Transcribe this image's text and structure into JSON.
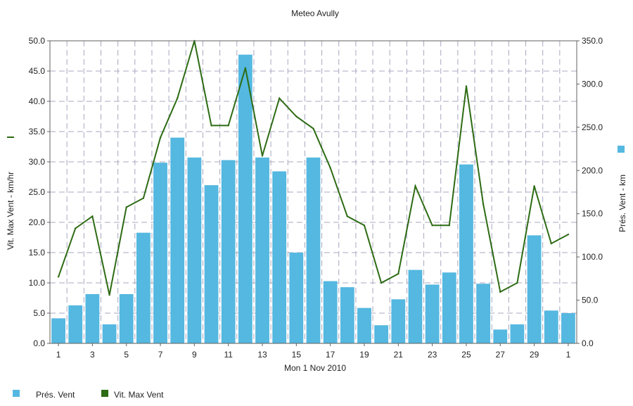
{
  "chart_data": {
    "type": "bar",
    "title": "Meteo  Avully",
    "xlabel": "Mon 1 Nov 2010",
    "y1label": "Vit. Max Vent - km/hr",
    "y2label": "Prés. Vent - km",
    "y1lim": [
      0,
      50
    ],
    "y1ticks": [
      "0.0",
      "5.0",
      "10.0",
      "15.0",
      "20.0",
      "25.0",
      "30.0",
      "35.0",
      "40.0",
      "45.0",
      "50.0"
    ],
    "y2lim": [
      0,
      350
    ],
    "y2ticks": [
      "0.0",
      "50.0",
      "100.0",
      "150.0",
      "200.0",
      "250.0",
      "300.0",
      "350.0"
    ],
    "xticks": [
      "1",
      "3",
      "5",
      "7",
      "9",
      "11",
      "13",
      "15",
      "17",
      "19",
      "21",
      "23",
      "25",
      "27",
      "29",
      "1"
    ],
    "grid": true,
    "legend_position": "bottom-left",
    "colors": {
      "bar": "#55b8e0",
      "line": "#2d6b14",
      "grid": "#a8a8c0"
    },
    "series": [
      {
        "name": "Prés. Vent",
        "kind": "bar",
        "axis": "right",
        "x": [
          1,
          2,
          3,
          4,
          5,
          6,
          7,
          8,
          9,
          10,
          11,
          12,
          13,
          14,
          15,
          16,
          17,
          18,
          19,
          20,
          21,
          22,
          23,
          24,
          25,
          26,
          27,
          28,
          29,
          30,
          31
        ],
        "values": [
          29,
          44,
          57,
          22,
          57,
          128,
          209,
          238,
          215,
          183,
          212,
          334,
          215,
          199,
          105,
          215,
          72,
          65,
          41,
          21,
          51,
          85,
          68,
          82,
          207,
          69,
          16,
          22,
          125,
          38,
          35
        ]
      },
      {
        "name": "Vit. Max Vent",
        "kind": "line",
        "axis": "left",
        "x": [
          1,
          2,
          3,
          4,
          5,
          6,
          7,
          8,
          9,
          10,
          11,
          12,
          13,
          14,
          15,
          16,
          17,
          18,
          19,
          20,
          21,
          22,
          23,
          24,
          25,
          26,
          27,
          28,
          29,
          30,
          31
        ],
        "values": [
          11,
          19,
          21,
          8,
          22.5,
          24,
          34,
          40.5,
          50,
          36,
          36,
          45.5,
          31,
          40.5,
          37.5,
          35.5,
          29,
          21,
          19.5,
          10,
          11.5,
          26,
          19.5,
          19.5,
          42.5,
          23,
          8.5,
          10,
          26,
          16.5,
          18
        ]
      }
    ]
  }
}
